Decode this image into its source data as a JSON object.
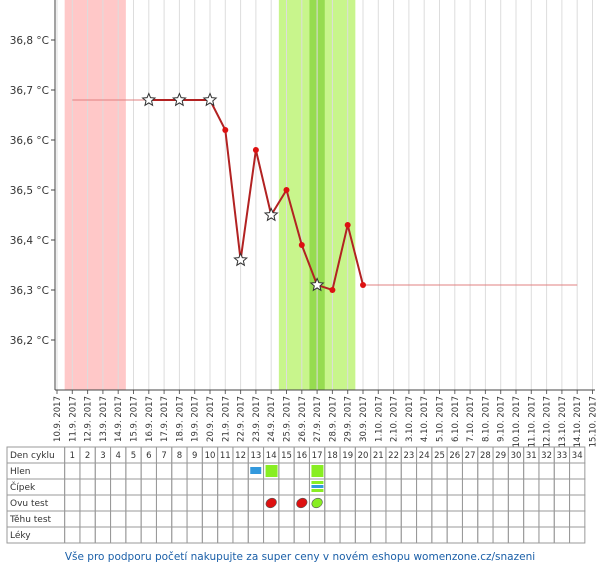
{
  "chart_data": {
    "type": "line",
    "categories": [
      "10.9. 2017",
      "11.9. 2017",
      "12.9. 2017",
      "13.9. 2017",
      "14.9. 2017",
      "15.9. 2017",
      "16.9. 2017",
      "17.9. 2017",
      "18.9. 2017",
      "19.9. 2017",
      "20.9. 2017",
      "21.9. 2017",
      "22.9. 2017",
      "23.9. 2017",
      "24.9. 2017",
      "25.9. 2017",
      "26.9. 2017",
      "27.9. 2017",
      "28.9. 2017",
      "29.9. 2017",
      "30.9. 2017",
      "1.10. 2017",
      "2.10. 2017",
      "3.10. 2017",
      "4.10. 2017",
      "5.10. 2017",
      "6.10. 2017",
      "7.10. 2017",
      "8.10. 2017",
      "9.10. 2017",
      "10.10. 2017",
      "11.10. 2017",
      "12.10. 2017",
      "13.10. 2017",
      "14.10. 2017",
      "15.10. 2017"
    ],
    "ylim": [
      36.1,
      36.88
    ],
    "yticks": [
      {
        "value": 36.2,
        "label": "36,2 °C"
      },
      {
        "value": 36.3,
        "label": "36,3 °C"
      },
      {
        "value": 36.4,
        "label": "36,4 °C"
      },
      {
        "value": 36.5,
        "label": "36,5 °C"
      },
      {
        "value": 36.6,
        "label": "36,6 °C"
      },
      {
        "value": 36.7,
        "label": "36,7 °C"
      },
      {
        "value": 36.8,
        "label": "36,8 °C"
      }
    ],
    "bands": [
      {
        "from": "11.9. 2017",
        "to": "14.9. 2017",
        "color": "#ffc8c8"
      },
      {
        "from": "25.9. 2017",
        "to": "29.9. 2017",
        "color": "#c8f58c"
      },
      {
        "from": "27.9. 2017",
        "to": "27.9. 2017",
        "color": "#96dc50"
      }
    ],
    "series": [
      {
        "color": "#b22222",
        "x": [
          "16.9. 2017",
          "18.9. 2017",
          "20.9. 2017",
          "21.9. 2017",
          "22.9. 2017",
          "23.9. 2017",
          "24.9. 2017",
          "25.9. 2017",
          "26.9. 2017",
          "27.9. 2017",
          "28.9. 2017",
          "29.9. 2017",
          "30.9. 2017"
        ],
        "values": [
          36.68,
          36.68,
          36.68,
          36.62,
          36.36,
          36.58,
          36.45,
          36.5,
          36.39,
          36.31,
          36.3,
          36.43,
          36.31
        ],
        "markers": [
          "star",
          "star",
          "star",
          "dot",
          "star",
          "dot",
          "star",
          "dot",
          "dot",
          "star",
          "dot",
          "dot",
          "dot"
        ]
      }
    ],
    "guides": [
      {
        "color": "#e08080",
        "x": [
          "11.9. 2017",
          "16.9. 2017"
        ],
        "values": [
          36.68,
          36.68
        ]
      },
      {
        "color": "#e08080",
        "x": [
          "30.9. 2017",
          "14.10. 2017"
        ],
        "values": [
          36.31,
          36.31
        ]
      }
    ]
  },
  "table": {
    "row_labels": [
      "Den cyklu",
      "Hlen",
      "Čípek",
      "Ovu test",
      "Těhu test",
      "Léky"
    ],
    "cycle_days": [
      1,
      2,
      3,
      4,
      5,
      6,
      7,
      8,
      9,
      10,
      11,
      12,
      13,
      14,
      15,
      16,
      17,
      18,
      19,
      20,
      21,
      22,
      23,
      24,
      25,
      26,
      27,
      28,
      29,
      30,
      31,
      32,
      33,
      34
    ]
  },
  "footer": "Vše pro podporu početí nakupujte za super ceny v novém eshopu womenzone.cz/snazeni"
}
